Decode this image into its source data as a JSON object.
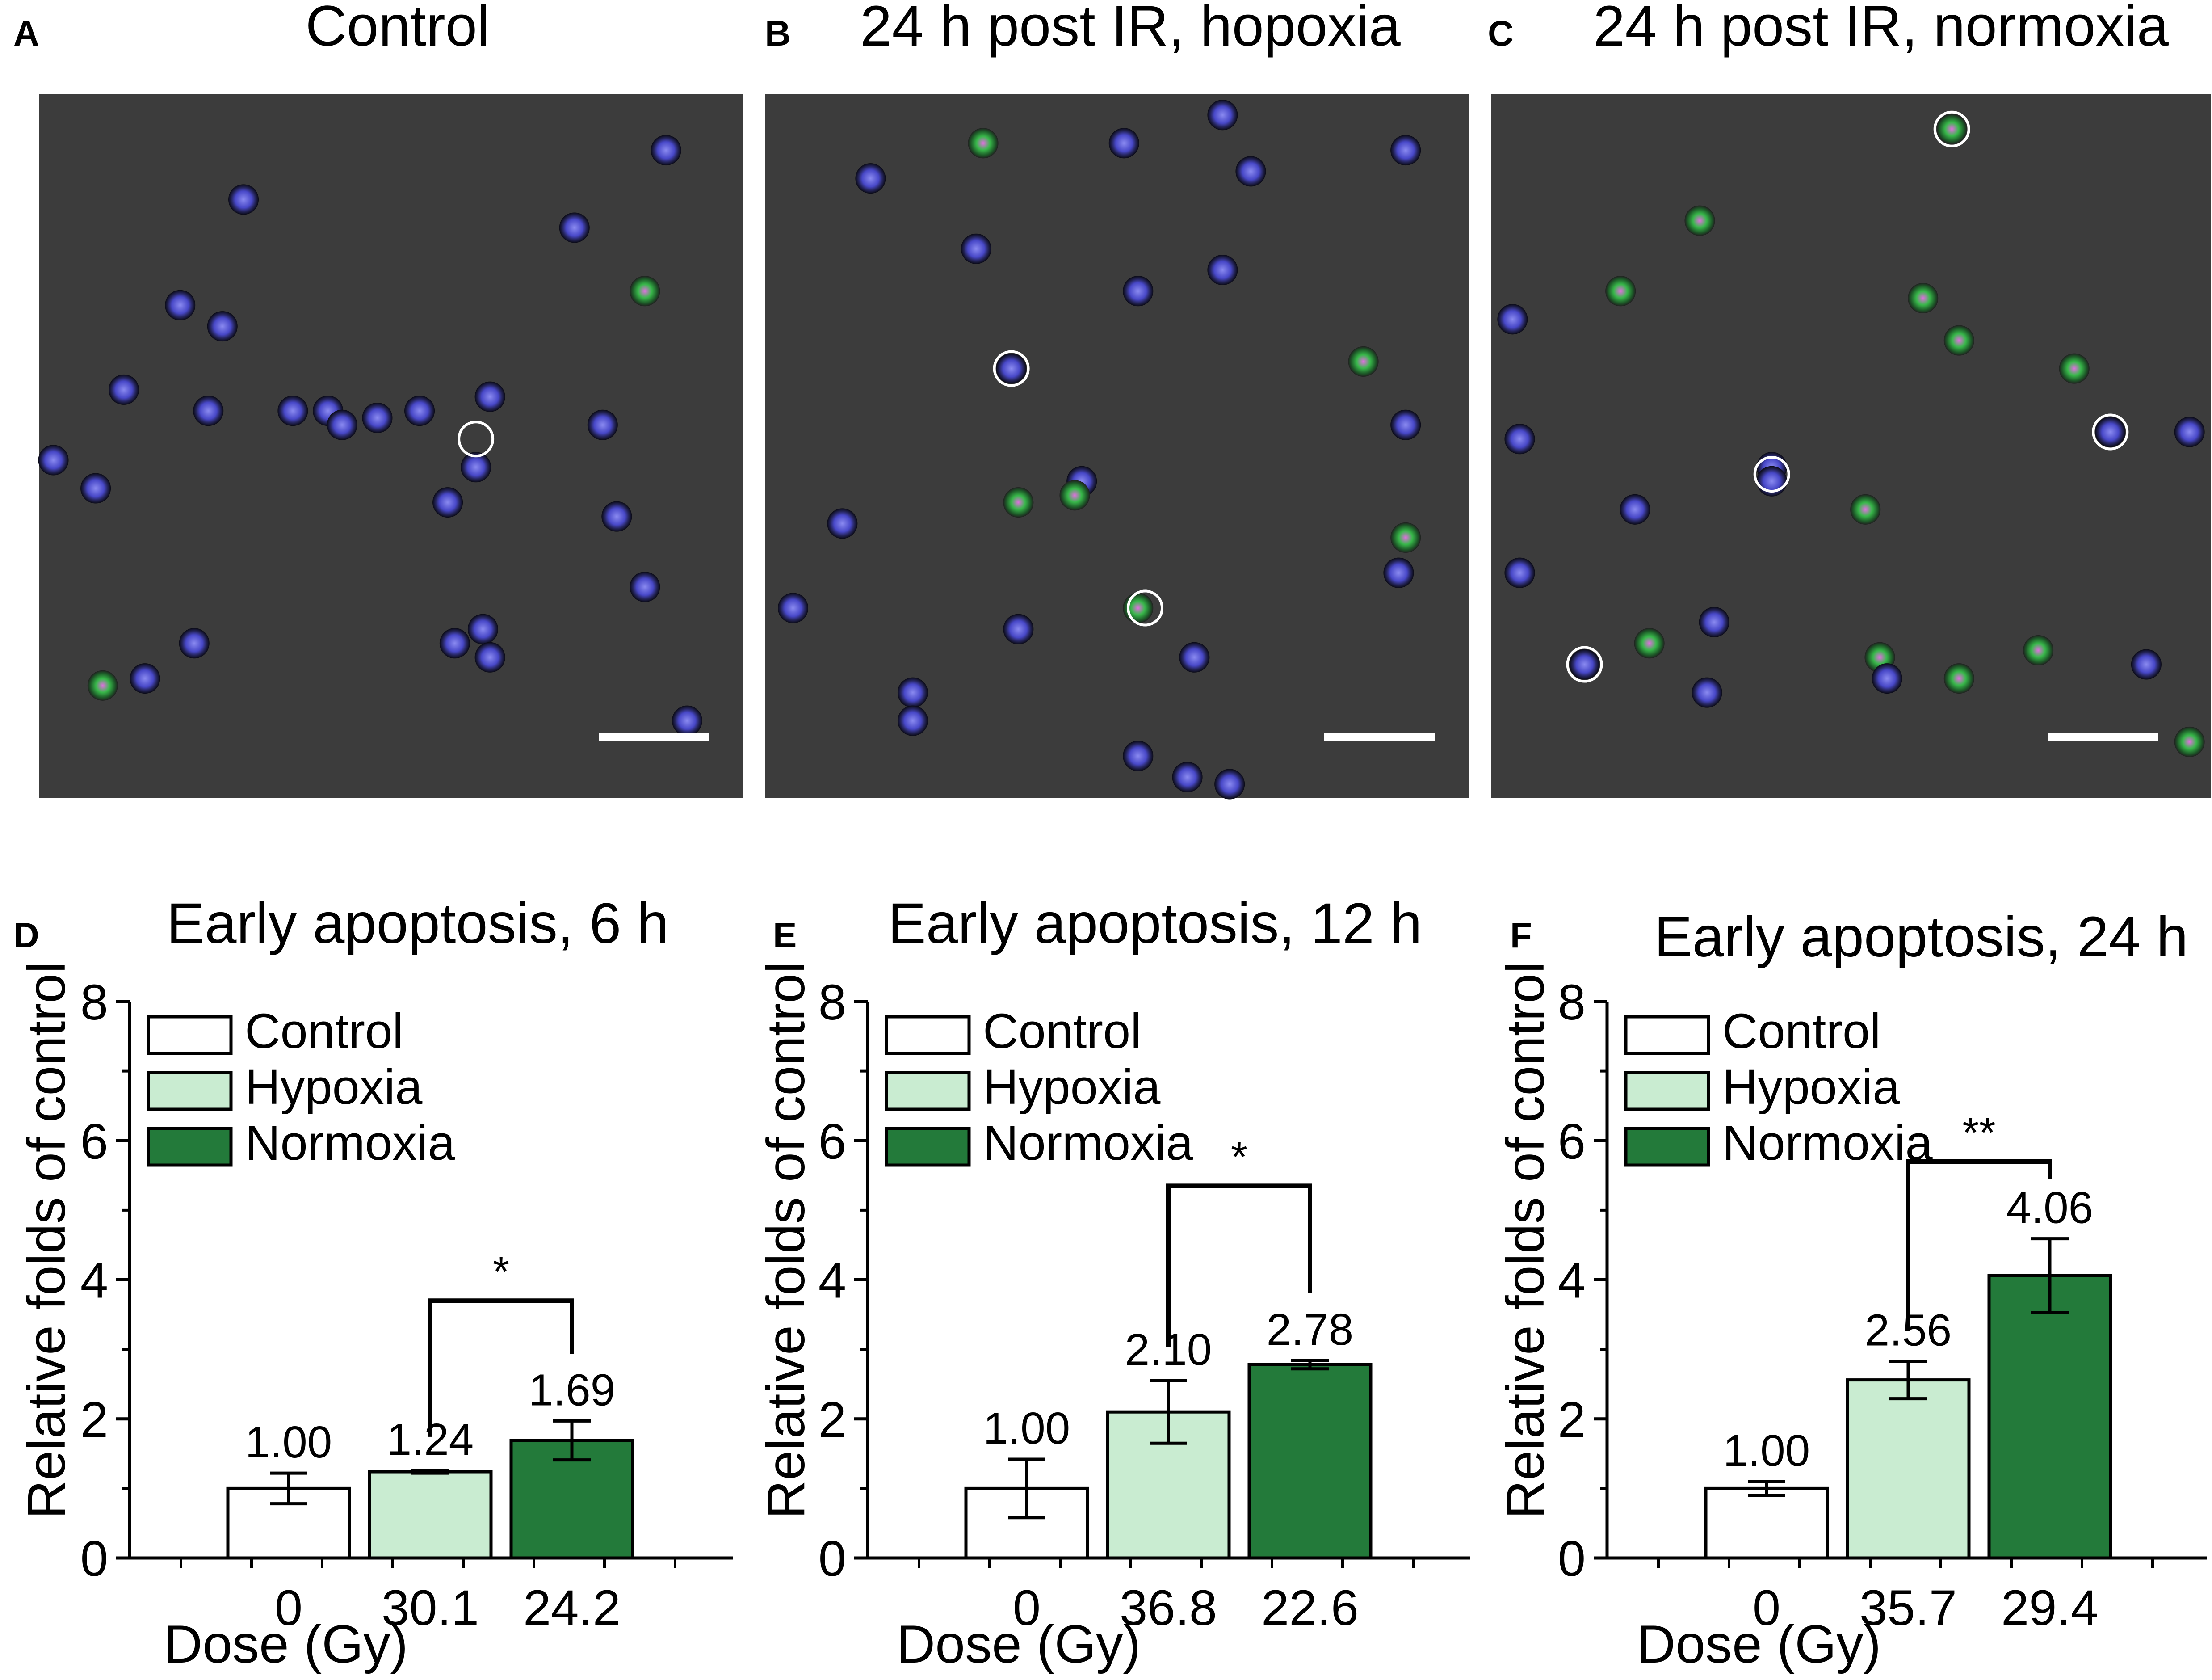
{
  "figure": {
    "micrographs": [
      {
        "letter": "A",
        "title": "Control",
        "cells": [
          [
            0.08,
            0.56,
            1
          ],
          [
            0.29,
            0.15,
            1
          ],
          [
            0.2,
            0.3,
            1
          ],
          [
            0.26,
            0.33,
            1
          ],
          [
            0.12,
            0.42,
            1
          ],
          [
            0.24,
            0.45,
            1
          ],
          [
            0.36,
            0.45,
            1
          ],
          [
            0.02,
            0.52,
            1
          ],
          [
            0.41,
            0.45,
            1
          ],
          [
            0.54,
            0.45,
            1
          ],
          [
            0.64,
            0.43,
            1
          ],
          [
            0.58,
            0.58,
            1
          ],
          [
            0.8,
            0.47,
            1
          ],
          [
            0.76,
            0.19,
            1
          ],
          [
            0.89,
            0.08,
            1
          ],
          [
            0.86,
            0.28,
            2
          ],
          [
            0.62,
            0.53,
            1
          ],
          [
            0.82,
            0.6,
            1
          ],
          [
            0.86,
            0.7,
            1
          ],
          [
            0.63,
            0.76,
            1
          ],
          [
            0.59,
            0.78,
            1
          ],
          [
            0.64,
            0.8,
            1
          ],
          [
            0.22,
            0.78,
            1
          ],
          [
            0.15,
            0.83,
            1
          ],
          [
            0.09,
            0.84,
            2
          ],
          [
            0.92,
            0.89,
            1
          ],
          [
            0.43,
            0.47,
            1
          ],
          [
            0.48,
            0.46,
            1
          ]
        ],
        "rings": [
          [
            0.62,
            0.49
          ]
        ]
      },
      {
        "letter": "B",
        "title": "24 h post IR, hopoxia",
        "cells": [
          [
            0.15,
            0.12,
            1
          ],
          [
            0.31,
            0.07,
            2
          ],
          [
            0.51,
            0.07,
            1
          ],
          [
            0.65,
            0.03,
            1
          ],
          [
            0.69,
            0.11,
            1
          ],
          [
            0.91,
            0.08,
            1
          ],
          [
            0.3,
            0.22,
            1
          ],
          [
            0.53,
            0.28,
            1
          ],
          [
            0.65,
            0.25,
            1
          ],
          [
            0.35,
            0.39,
            1
          ],
          [
            0.85,
            0.38,
            2
          ],
          [
            0.91,
            0.47,
            1
          ],
          [
            0.36,
            0.58,
            2
          ],
          [
            0.45,
            0.55,
            1
          ],
          [
            0.44,
            0.57,
            2
          ],
          [
            0.11,
            0.61,
            1
          ],
          [
            0.91,
            0.63,
            2
          ],
          [
            0.9,
            0.68,
            1
          ],
          [
            0.04,
            0.73,
            1
          ],
          [
            0.36,
            0.76,
            1
          ],
          [
            0.53,
            0.73,
            2
          ],
          [
            0.61,
            0.8,
            1
          ],
          [
            0.21,
            0.85,
            1
          ],
          [
            0.21,
            0.89,
            1
          ],
          [
            0.53,
            0.94,
            1
          ],
          [
            0.6,
            0.97,
            1
          ],
          [
            0.66,
            0.98,
            1
          ]
        ],
        "rings": [
          [
            0.35,
            0.39
          ],
          [
            0.54,
            0.73
          ]
        ]
      },
      {
        "letter": "C",
        "title": "24 h post IR, normoxia",
        "cells": [
          [
            0.64,
            0.05,
            2
          ],
          [
            0.29,
            0.18,
            2
          ],
          [
            0.18,
            0.28,
            2
          ],
          [
            0.03,
            0.32,
            1
          ],
          [
            0.6,
            0.29,
            2
          ],
          [
            0.65,
            0.35,
            2
          ],
          [
            0.81,
            0.39,
            2
          ],
          [
            0.04,
            0.49,
            1
          ],
          [
            0.39,
            0.53,
            1
          ],
          [
            0.86,
            0.48,
            1
          ],
          [
            0.97,
            0.48,
            1
          ],
          [
            0.2,
            0.59,
            1
          ],
          [
            0.52,
            0.59,
            2
          ],
          [
            0.04,
            0.68,
            1
          ],
          [
            0.31,
            0.75,
            1
          ],
          [
            0.22,
            0.78,
            2
          ],
          [
            0.54,
            0.8,
            2
          ],
          [
            0.55,
            0.83,
            1
          ],
          [
            0.65,
            0.83,
            2
          ],
          [
            0.76,
            0.79,
            2
          ],
          [
            0.91,
            0.81,
            1
          ],
          [
            0.3,
            0.85,
            1
          ],
          [
            0.13,
            0.81,
            1
          ],
          [
            0.97,
            0.92,
            2
          ],
          [
            0.39,
            0.55,
            1
          ]
        ],
        "rings": [
          [
            0.64,
            0.05
          ],
          [
            0.39,
            0.54
          ],
          [
            0.86,
            0.48
          ],
          [
            0.13,
            0.81
          ]
        ]
      }
    ],
    "legend": [
      {
        "label": "Control",
        "color": "#ffffff"
      },
      {
        "label": "Hypoxia",
        "color": "#c9ecd1"
      },
      {
        "label": "Normoxia",
        "color": "#237a3a"
      }
    ],
    "axis_y_label": "Relative folds of control",
    "axis_x_label": "Dose (Gy)"
  },
  "chart_data": [
    {
      "letter": "D",
      "type": "bar",
      "title": "Early apoptosis, 6 h",
      "categories": [
        "0",
        "30.1",
        "24.2"
      ],
      "values": [
        1.0,
        1.24,
        1.69
      ],
      "value_labels": [
        "1.00",
        "1.24",
        "1.69"
      ],
      "errors": [
        0.22,
        0.02,
        0.28
      ],
      "xlabel": "Dose (Gy)",
      "ylabel": "Relative folds of control",
      "ylim": [
        0,
        8
      ],
      "yticks": [
        "0",
        "2",
        "4",
        "6",
        "8"
      ],
      "significance": {
        "from": 1,
        "to": 2,
        "level": 3.7,
        "label": "*"
      }
    },
    {
      "letter": "E",
      "type": "bar",
      "title": "Early apoptosis, 12 h",
      "categories": [
        "0",
        "36.8",
        "22.6"
      ],
      "values": [
        1.0,
        2.1,
        2.78
      ],
      "value_labels": [
        "1.00",
        "2.10",
        "2.78"
      ],
      "errors": [
        0.42,
        0.45,
        0.06
      ],
      "xlabel": "Dose (Gy)",
      "ylabel": "Relative folds of control",
      "ylim": [
        0,
        8
      ],
      "yticks": [
        "0",
        "2",
        "4",
        "6",
        "8"
      ],
      "significance": {
        "from": 1,
        "to": 2,
        "level": 5.35,
        "label": "*"
      }
    },
    {
      "letter": "F",
      "type": "bar",
      "title": "Early apoptosis, 24 h",
      "categories": [
        "0",
        "35.7",
        "29.4"
      ],
      "values": [
        1.0,
        2.56,
        4.06
      ],
      "value_labels": [
        "1.00",
        "2.56",
        "4.06"
      ],
      "errors": [
        0.1,
        0.27,
        0.53
      ],
      "xlabel": "Dose (Gy)",
      "ylabel": "Relative folds of control",
      "ylim": [
        0,
        8
      ],
      "yticks": [
        "0",
        "2",
        "4",
        "6",
        "8"
      ],
      "significance": {
        "from": 1,
        "to": 2,
        "level": 5.7,
        "label": "**"
      }
    }
  ]
}
